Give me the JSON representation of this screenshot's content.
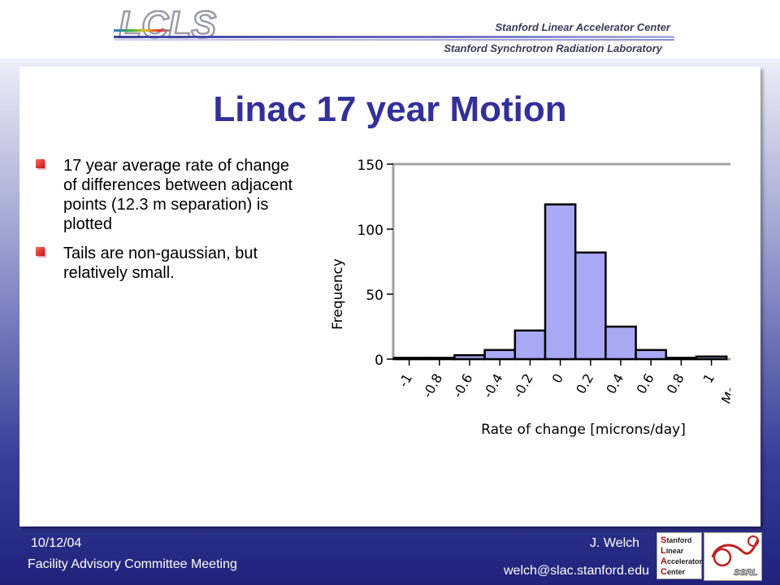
{
  "header": {
    "logo_text": "LCLS",
    "org_line1": "Stanford Linear Accelerator Center",
    "org_line2": "Stanford Synchrotron Radiation Laboratory"
  },
  "slide": {
    "title": "Linac 17 year Motion",
    "bullets": [
      "17 year average rate of change of differences between adjacent points (12.3 m separation) is plotted",
      "Tails are non-gaussian, but relatively small."
    ]
  },
  "chart_data": {
    "type": "bar",
    "categories": [
      "-1",
      "-0.8",
      "-0.6",
      "-0.4",
      "-0.2",
      "0",
      "0.2",
      "0.4",
      "0.6",
      "0.8",
      "1",
      "More"
    ],
    "values": [
      1,
      1,
      3,
      7,
      22,
      119,
      82,
      25,
      7,
      1,
      2,
      0
    ],
    "xlabel": "Rate of change [microns/day]",
    "ylabel": "Frequency",
    "ylim": [
      0,
      150
    ],
    "yticks": [
      0,
      50,
      100,
      150
    ],
    "grid": false,
    "colors": {
      "bar": "#a8a8f4",
      "bar_edge": "#000000",
      "plot_border": "#a0a0a0"
    }
  },
  "footer": {
    "date": "10/12/04",
    "meeting": "Facility Advisory Committee Meeting",
    "author": "J. Welch",
    "email": "welch@slac.stanford.edu",
    "slac_logo_lines": [
      "Stanford",
      "Linear",
      "Accelerator",
      "Center"
    ],
    "ssrl_logo_text": "SSRL"
  }
}
